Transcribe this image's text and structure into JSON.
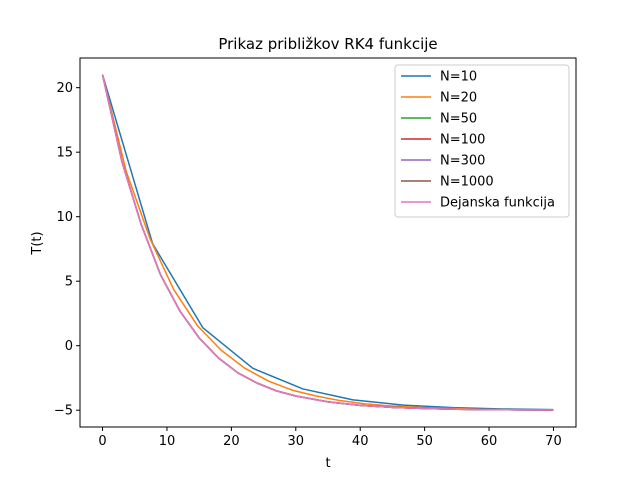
{
  "chart_data": {
    "type": "line",
    "title": "Prikaz približkov RK4 funkcije",
    "xlabel": "t",
    "ylabel": "T(t)",
    "xlim": [
      -3.5,
      73.5
    ],
    "ylim": [
      -6.3,
      22.3
    ],
    "xticks": [
      0,
      10,
      20,
      30,
      40,
      50,
      60,
      70
    ],
    "yticks": [
      -5,
      0,
      5,
      10,
      15,
      20
    ],
    "grid": false,
    "legend_position": "top-right",
    "series": [
      {
        "name": "N=10",
        "color": "#1f77b4",
        "x": [
          0,
          7.78,
          15.56,
          23.33,
          31.11,
          38.89,
          46.67,
          54.44,
          62.22,
          70
        ],
        "y": [
          21,
          7.9,
          1.4,
          -1.75,
          -3.35,
          -4.2,
          -4.6,
          -4.8,
          -4.9,
          -4.95
        ]
      },
      {
        "name": "N=20",
        "color": "#ff7f0e",
        "x": [
          0,
          3.68,
          7.37,
          11.05,
          14.74,
          18.42,
          22.11,
          25.79,
          29.47,
          33.16,
          36.84,
          40.53,
          44.21,
          47.89,
          51.58,
          55.26,
          58.95,
          62.63,
          66.32,
          70
        ],
        "y": [
          21,
          13.5,
          8.3,
          4.35,
          1.55,
          -0.35,
          -1.75,
          -2.75,
          -3.45,
          -3.9,
          -4.25,
          -4.5,
          -4.65,
          -4.75,
          -4.83,
          -4.88,
          -4.92,
          -4.95,
          -4.96,
          -4.97
        ]
      },
      {
        "name": "N=50",
        "color": "#2ca02c",
        "x": [
          0,
          3,
          6,
          9,
          12,
          15,
          18,
          21,
          24,
          27,
          30,
          35,
          40,
          45,
          50,
          55,
          60,
          65,
          70
        ],
        "y": [
          21,
          14.3,
          9.4,
          5.5,
          2.7,
          0.6,
          -0.95,
          -2.1,
          -2.9,
          -3.5,
          -3.9,
          -4.35,
          -4.62,
          -4.78,
          -4.87,
          -4.92,
          -4.95,
          -4.97,
          -4.98
        ]
      },
      {
        "name": "N=100",
        "color": "#d62728",
        "x": [
          0,
          3,
          6,
          9,
          12,
          15,
          18,
          21,
          24,
          27,
          30,
          35,
          40,
          45,
          50,
          55,
          60,
          65,
          70
        ],
        "y": [
          21,
          14.3,
          9.4,
          5.5,
          2.7,
          0.6,
          -0.95,
          -2.1,
          -2.9,
          -3.5,
          -3.9,
          -4.35,
          -4.62,
          -4.78,
          -4.87,
          -4.92,
          -4.95,
          -4.97,
          -4.98
        ]
      },
      {
        "name": "N=300",
        "color": "#9467bd",
        "x": [
          0,
          3,
          6,
          9,
          12,
          15,
          18,
          21,
          24,
          27,
          30,
          35,
          40,
          45,
          50,
          55,
          60,
          65,
          70
        ],
        "y": [
          21,
          14.3,
          9.4,
          5.5,
          2.7,
          0.6,
          -0.95,
          -2.1,
          -2.9,
          -3.5,
          -3.9,
          -4.35,
          -4.62,
          -4.78,
          -4.87,
          -4.92,
          -4.95,
          -4.97,
          -4.98
        ]
      },
      {
        "name": "N=1000",
        "color": "#8c564b",
        "x": [
          0,
          3,
          6,
          9,
          12,
          15,
          18,
          21,
          24,
          27,
          30,
          35,
          40,
          45,
          50,
          55,
          60,
          65,
          70
        ],
        "y": [
          21,
          14.3,
          9.4,
          5.5,
          2.7,
          0.6,
          -0.95,
          -2.1,
          -2.9,
          -3.5,
          -3.9,
          -4.35,
          -4.62,
          -4.78,
          -4.87,
          -4.92,
          -4.95,
          -4.97,
          -4.98
        ]
      },
      {
        "name": "Dejanska funkcija",
        "color": "#e377c2",
        "x": [
          0,
          3,
          6,
          9,
          12,
          15,
          18,
          21,
          24,
          27,
          30,
          35,
          40,
          45,
          50,
          55,
          60,
          65,
          70
        ],
        "y": [
          21,
          14.3,
          9.4,
          5.5,
          2.7,
          0.6,
          -0.95,
          -2.1,
          -2.9,
          -3.5,
          -3.9,
          -4.35,
          -4.62,
          -4.78,
          -4.87,
          -4.92,
          -4.95,
          -4.97,
          -4.98
        ]
      }
    ]
  }
}
